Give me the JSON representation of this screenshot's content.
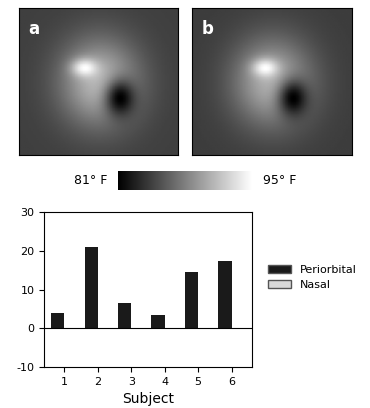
{
  "images": {
    "labels": [
      "a",
      "b"
    ]
  },
  "color_scale": {
    "range": [
      81,
      95
    ],
    "min_label": "81° F",
    "max_label": "95° F"
  },
  "chart_data": {
    "type": "bar",
    "categories": [
      "1",
      "2",
      "3",
      "4",
      "5",
      "6"
    ],
    "series": [
      {
        "name": "Periorbital",
        "color": "#1a1a1a",
        "values": [
          4,
          21,
          6.5,
          3.5,
          14.5,
          17.5
        ]
      },
      {
        "name": "Nasal",
        "color": "#d9d9d9",
        "values": [
          0,
          0,
          0,
          0,
          0,
          0
        ]
      }
    ],
    "x_label": "Subject",
    "ylim": [
      -10,
      30
    ],
    "yticks": [
      -10,
      0,
      10,
      20,
      30
    ],
    "legend": "right"
  }
}
